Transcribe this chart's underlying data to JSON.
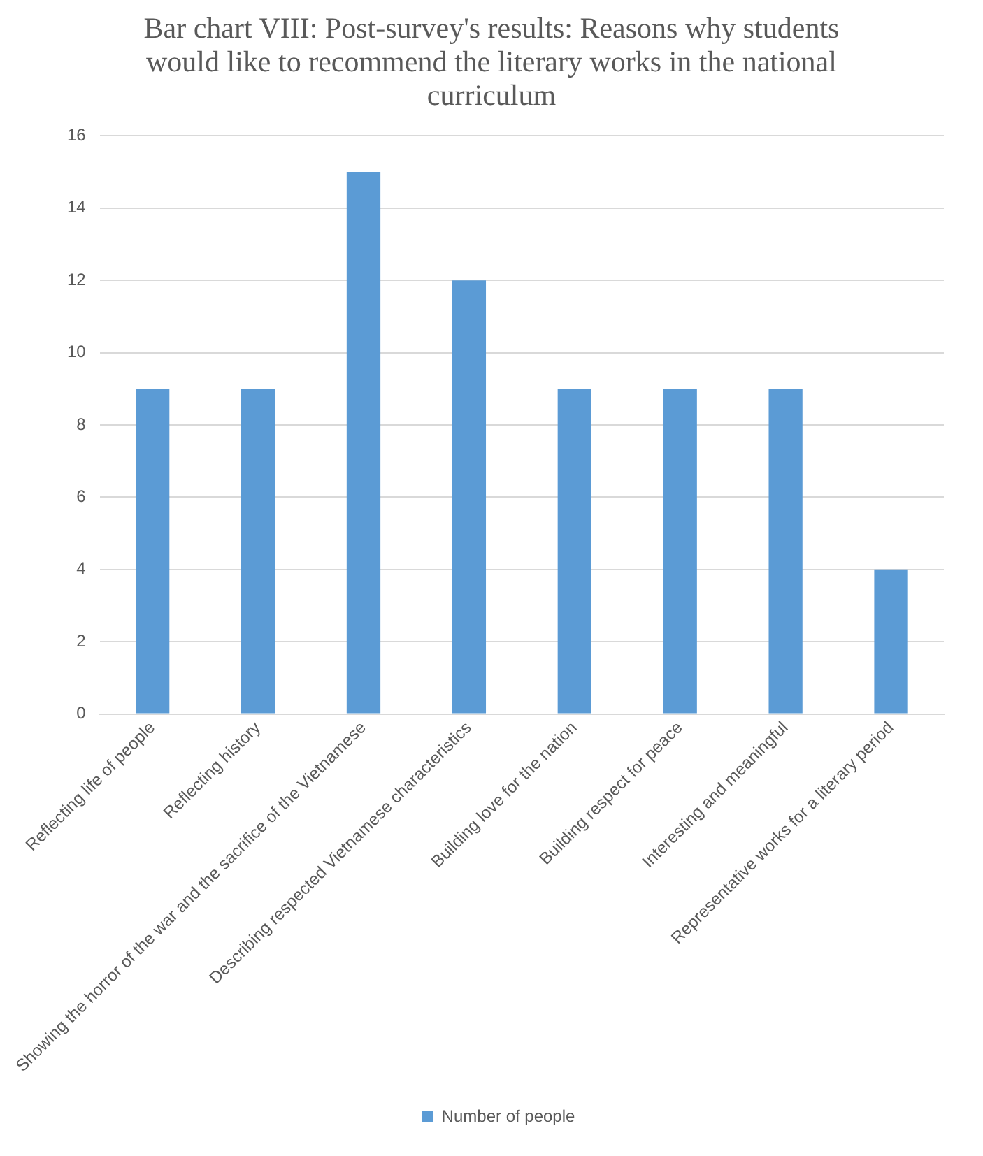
{
  "chart_data": {
    "type": "bar",
    "title": "Bar chart VIII: Post-survey's results: Reasons why students would like to recommend the literary works in the national curriculum",
    "categories": [
      "Reflecting life of people",
      "Reflecting history",
      "Showing the horror of the war and the sacrifice of the Vietnamese",
      "Describing respected Vietnamese characteristics",
      "Building love for the nation",
      "Building respect for peace",
      "Interesting and meaningful",
      "Representative works for a literary period"
    ],
    "series": [
      {
        "name": "Number of people",
        "color": "#5b9bd5",
        "values": [
          9,
          9,
          15,
          12,
          9,
          9,
          9,
          4
        ]
      }
    ],
    "ylim": [
      0,
      16
    ],
    "yticks": [
      0,
      2,
      4,
      6,
      8,
      10,
      12,
      14,
      16
    ],
    "grid": "y",
    "legend": "bottom"
  }
}
